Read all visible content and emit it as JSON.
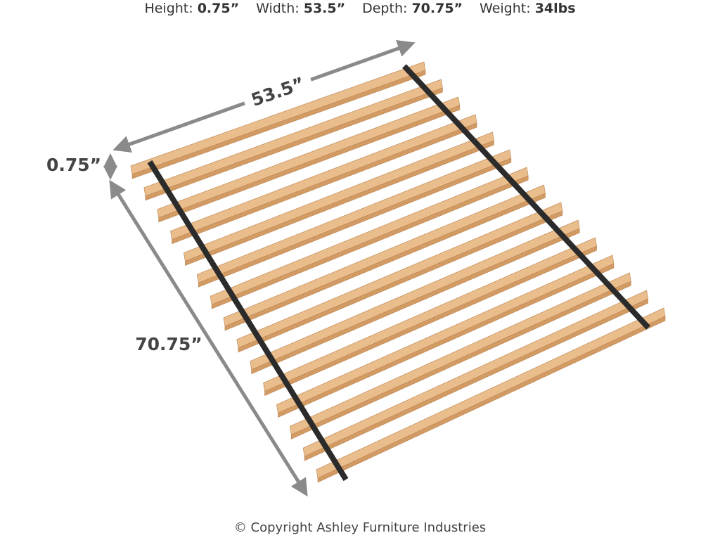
{
  "header": {
    "specs": [
      {
        "label": "Height:",
        "value": "0.75”"
      },
      {
        "label": "Width:",
        "value": "53.5”"
      },
      {
        "label": "Depth:",
        "value": "70.75”"
      },
      {
        "label": "Weight:",
        "value": "34lbs"
      }
    ]
  },
  "dimensions": {
    "width": "53.5”",
    "height": "0.75”",
    "depth": "70.75”"
  },
  "footer": {
    "copyright": "© Copyright Ashley Furniture Industries"
  }
}
